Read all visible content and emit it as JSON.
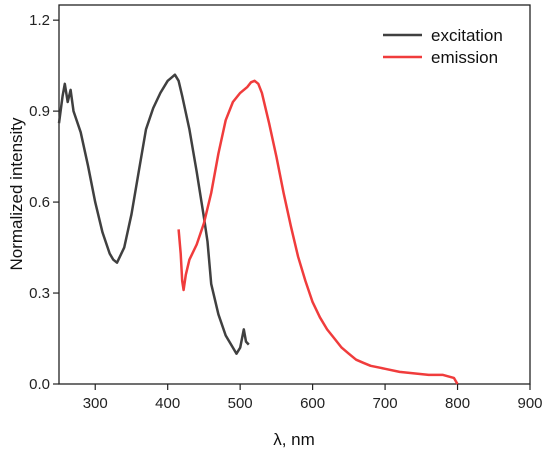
{
  "chart_data": {
    "type": "line",
    "title": "",
    "xlabel": "λ, nm",
    "ylabel": "Normalized intensity",
    "xlim": [
      250,
      900
    ],
    "ylim": [
      0,
      1.25
    ],
    "x_ticks": [
      300,
      400,
      500,
      600,
      700,
      800,
      900
    ],
    "x_tick_labels": [
      "300",
      "400",
      "500",
      "600",
      "700",
      "800",
      "900"
    ],
    "y_ticks": [
      0.0,
      0.3,
      0.6,
      0.9,
      1.2
    ],
    "y_tick_labels": [
      "0.0",
      "0.3",
      "0.6",
      "0.9",
      "1.2"
    ],
    "grid": false,
    "legend_position": "top-right",
    "series": [
      {
        "name": "excitation",
        "color": "#404040",
        "points": [
          [
            250,
            0.86
          ],
          [
            255,
            0.95
          ],
          [
            258,
            0.99
          ],
          [
            262,
            0.93
          ],
          [
            266,
            0.97
          ],
          [
            270,
            0.9
          ],
          [
            280,
            0.83
          ],
          [
            290,
            0.72
          ],
          [
            300,
            0.6
          ],
          [
            310,
            0.5
          ],
          [
            320,
            0.43
          ],
          [
            325,
            0.41
          ],
          [
            330,
            0.4
          ],
          [
            340,
            0.45
          ],
          [
            350,
            0.56
          ],
          [
            360,
            0.7
          ],
          [
            370,
            0.84
          ],
          [
            380,
            0.91
          ],
          [
            390,
            0.96
          ],
          [
            400,
            1.0
          ],
          [
            405,
            1.01
          ],
          [
            410,
            1.02
          ],
          [
            415,
            1.0
          ],
          [
            420,
            0.95
          ],
          [
            430,
            0.84
          ],
          [
            440,
            0.7
          ],
          [
            450,
            0.55
          ],
          [
            455,
            0.47
          ],
          [
            460,
            0.33
          ],
          [
            470,
            0.23
          ],
          [
            480,
            0.16
          ],
          [
            490,
            0.12
          ],
          [
            495,
            0.1
          ],
          [
            500,
            0.12
          ],
          [
            505,
            0.18
          ],
          [
            508,
            0.14
          ],
          [
            512,
            0.13
          ]
        ]
      },
      {
        "name": "emission",
        "color": "#f03c3c",
        "points": [
          [
            415,
            0.51
          ],
          [
            418,
            0.43
          ],
          [
            420,
            0.34
          ],
          [
            422,
            0.31
          ],
          [
            425,
            0.36
          ],
          [
            430,
            0.41
          ],
          [
            440,
            0.46
          ],
          [
            450,
            0.53
          ],
          [
            460,
            0.63
          ],
          [
            470,
            0.76
          ],
          [
            480,
            0.87
          ],
          [
            490,
            0.93
          ],
          [
            500,
            0.96
          ],
          [
            510,
            0.98
          ],
          [
            515,
            0.995
          ],
          [
            520,
            1.0
          ],
          [
            525,
            0.99
          ],
          [
            530,
            0.96
          ],
          [
            540,
            0.86
          ],
          [
            550,
            0.75
          ],
          [
            560,
            0.63
          ],
          [
            570,
            0.52
          ],
          [
            580,
            0.42
          ],
          [
            590,
            0.34
          ],
          [
            600,
            0.27
          ],
          [
            610,
            0.22
          ],
          [
            620,
            0.18
          ],
          [
            630,
            0.15
          ],
          [
            640,
            0.12
          ],
          [
            650,
            0.1
          ],
          [
            660,
            0.08
          ],
          [
            670,
            0.07
          ],
          [
            680,
            0.06
          ],
          [
            700,
            0.05
          ],
          [
            720,
            0.04
          ],
          [
            740,
            0.035
          ],
          [
            760,
            0.03
          ],
          [
            780,
            0.03
          ],
          [
            795,
            0.02
          ],
          [
            800,
            0.0
          ]
        ]
      }
    ]
  }
}
